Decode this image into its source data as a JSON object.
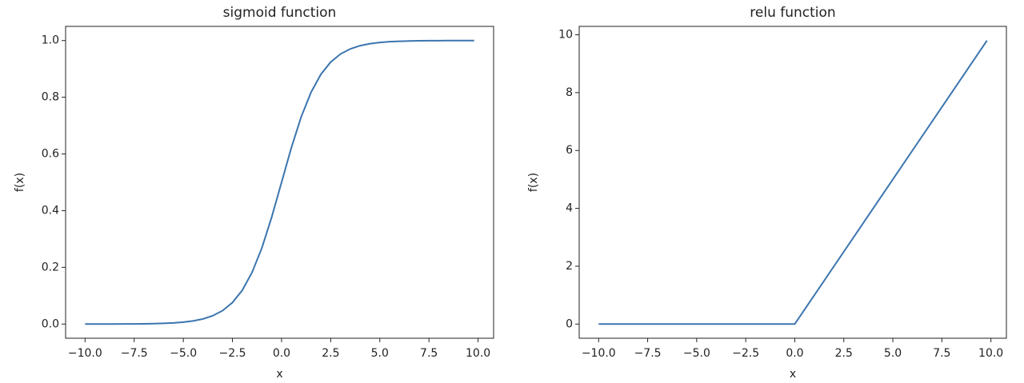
{
  "chart_data": [
    {
      "type": "line",
      "title": "sigmoid function",
      "xlabel": "x",
      "ylabel": "f(x)",
      "x": [
        -10,
        -9.5,
        -9,
        -8.5,
        -8,
        -7.5,
        -7,
        -6.5,
        -6,
        -5.5,
        -5,
        -4.5,
        -4,
        -3.5,
        -3,
        -2.5,
        -2,
        -1.5,
        -1,
        -0.5,
        0,
        0.5,
        1,
        1.5,
        2,
        2.5,
        3,
        3.5,
        4,
        4.5,
        5,
        5.5,
        6,
        6.5,
        7,
        7.5,
        8,
        8.5,
        9,
        9.5,
        9.8
      ],
      "series": [
        {
          "color": "#3b75af",
          "values": [
            5e-05,
            7e-05,
            0.00012,
            0.0002,
            0.00034,
            0.00055,
            0.00091,
            0.0015,
            0.0025,
            0.0041,
            0.0067,
            0.011,
            0.018,
            0.0293,
            0.0474,
            0.0759,
            0.1192,
            0.1824,
            0.2689,
            0.3775,
            0.5,
            0.6225,
            0.7311,
            0.8176,
            0.8808,
            0.9241,
            0.9526,
            0.9707,
            0.982,
            0.989,
            0.9933,
            0.9959,
            0.9975,
            0.9985,
            0.9991,
            0.99945,
            0.99966,
            0.9998,
            0.99988,
            0.99993,
            0.99994
          ]
        }
      ],
      "xlim": [
        -10.99,
        10.79
      ],
      "ylim": [
        -0.05,
        1.05
      ],
      "xticks": [
        {
          "value": -10,
          "label": "−10.0"
        },
        {
          "value": -7.5,
          "label": "−7.5"
        },
        {
          "value": -5,
          "label": "−5.0"
        },
        {
          "value": -2.5,
          "label": "−2.5"
        },
        {
          "value": 0,
          "label": "0.0"
        },
        2.5,
        {
          "value": 5,
          "label": "5.0"
        },
        7.5,
        {
          "value": 10,
          "label": "10.0"
        }
      ],
      "yticks": [
        {
          "value": 0,
          "label": "0.0"
        },
        0.2,
        0.4,
        0.6,
        0.8,
        {
          "value": 1,
          "label": "1.0"
        }
      ]
    },
    {
      "type": "line",
      "title": "relu function",
      "xlabel": "x",
      "ylabel": "f(x)",
      "x": [
        -10,
        0,
        9.8
      ],
      "series": [
        {
          "color": "#3b75af",
          "values": [
            0,
            0,
            9.8
          ]
        }
      ],
      "xlim": [
        -10.99,
        10.79
      ],
      "ylim": [
        -0.49,
        10.29
      ],
      "xticks": [
        {
          "value": -10,
          "label": "−10.0"
        },
        {
          "value": -7.5,
          "label": "−7.5"
        },
        {
          "value": -5,
          "label": "−5.0"
        },
        {
          "value": -2.5,
          "label": "−2.5"
        },
        {
          "value": 0,
          "label": "0.0"
        },
        2.5,
        {
          "value": 5,
          "label": "5.0"
        },
        7.5,
        {
          "value": 10,
          "label": "10.0"
        }
      ],
      "yticks": [
        0,
        2,
        4,
        6,
        8,
        10
      ]
    }
  ]
}
